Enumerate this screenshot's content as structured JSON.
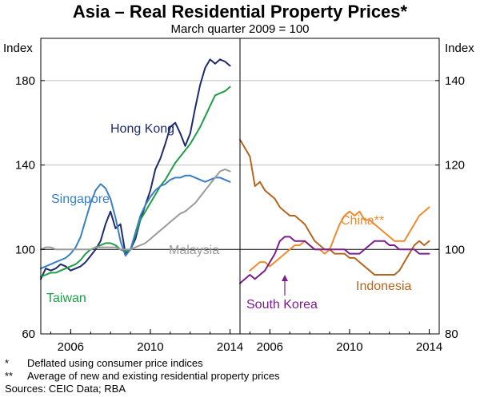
{
  "chart_data": {
    "type": "line",
    "title": "Asia – Real Residential Property Prices*",
    "subtitle": "March quarter 2009 = 100",
    "notes": [
      {
        "marker": "*",
        "text": "Deflated using consumer price indices"
      },
      {
        "marker": "**",
        "text": "Average of new and existing residential property prices"
      }
    ],
    "sources": "Sources: CEIC Data; RBA",
    "panels": [
      {
        "side": "left",
        "ylabel": "Index",
        "ylim": [
          60,
          200
        ],
        "yticks": [
          60,
          100,
          140,
          180
        ],
        "xlim": [
          2004.5,
          2014.5
        ],
        "xticks": [
          2006,
          2010,
          2014
        ],
        "reference_line": 100,
        "series": [
          {
            "name": "Hong Kong",
            "color": "#1f2a6b",
            "x": [
              2004.5,
              2004.75,
              2005,
              2005.25,
              2005.5,
              2005.75,
              2006,
              2006.25,
              2006.5,
              2006.75,
              2007,
              2007.25,
              2007.5,
              2007.75,
              2008,
              2008.25,
              2008.5,
              2008.75,
              2009,
              2009.25,
              2009.5,
              2009.75,
              2010,
              2010.25,
              2010.5,
              2010.75,
              2011,
              2011.25,
              2011.5,
              2011.75,
              2012,
              2012.25,
              2012.5,
              2012.75,
              2013,
              2013.25,
              2013.5,
              2013.75,
              2014
            ],
            "values": [
              86,
              91,
              90,
              91,
              93,
              92,
              90,
              91,
              92,
              94,
              97,
              100,
              104,
              112,
              118,
              110,
              112,
              98,
              100,
              105,
              114,
              121,
              128,
              138,
              143,
              150,
              158,
              160,
              155,
              149,
              155,
              167,
              178,
              186,
              190,
              188,
              190,
              189,
              187
            ]
          },
          {
            "name": "Taiwan",
            "color": "#1f9e47",
            "x": [
              2004.5,
              2004.75,
              2005,
              2005.25,
              2005.5,
              2005.75,
              2006,
              2006.25,
              2006.5,
              2006.75,
              2007,
              2007.25,
              2007.5,
              2007.75,
              2008,
              2008.25,
              2008.5,
              2008.75,
              2009,
              2009.25,
              2009.5,
              2009.75,
              2010,
              2010.25,
              2010.5,
              2010.75,
              2011,
              2011.25,
              2011.5,
              2011.75,
              2012,
              2012.25,
              2012.5,
              2012.75,
              2013,
              2013.25,
              2013.5,
              2013.75,
              2014
            ],
            "values": [
              87,
              88,
              89,
              89,
              90,
              91,
              92,
              93,
              95,
              98,
              100,
              101,
              102,
              103,
              103,
              102,
              100,
              99,
              100,
              107,
              114,
              118,
              122,
              126,
              130,
              133,
              137,
              141,
              144,
              147,
              150,
              154,
              158,
              163,
              168,
              173,
              174,
              175,
              177
            ]
          },
          {
            "name": "Singapore",
            "color": "#3a7fc4",
            "x": [
              2004.5,
              2004.75,
              2005,
              2005.25,
              2005.5,
              2005.75,
              2006,
              2006.25,
              2006.5,
              2006.75,
              2007,
              2007.25,
              2007.5,
              2007.75,
              2008,
              2008.25,
              2008.5,
              2008.75,
              2009,
              2009.25,
              2009.5,
              2009.75,
              2010,
              2010.25,
              2010.5,
              2010.75,
              2011,
              2011.25,
              2011.5,
              2011.75,
              2012,
              2012.25,
              2012.5,
              2012.75,
              2013,
              2013.25,
              2013.5,
              2013.75,
              2014
            ],
            "values": [
              91,
              92,
              93,
              94,
              95,
              96,
              98,
              101,
              106,
              114,
              122,
              128,
              131,
              129,
              124,
              115,
              104,
              97,
              100,
              108,
              116,
              121,
              125,
              128,
              130,
              131,
              133,
              134,
              134,
              135,
              135,
              134,
              133,
              132,
              133,
              134,
              134,
              133,
              132
            ]
          },
          {
            "name": "Malaysia",
            "color": "#9a9a9a",
            "x": [
              2004.5,
              2004.75,
              2005,
              2005.25,
              2005.5,
              2005.75,
              2006,
              2006.25,
              2006.5,
              2006.75,
              2007,
              2007.25,
              2007.5,
              2007.75,
              2008,
              2008.25,
              2008.5,
              2008.75,
              2009,
              2009.25,
              2009.5,
              2009.75,
              2010,
              2010.25,
              2010.5,
              2010.75,
              2011,
              2011.25,
              2011.5,
              2011.75,
              2012,
              2012.25,
              2012.5,
              2012.75,
              2013,
              2013.25,
              2013.5,
              2013.75,
              2014
            ],
            "values": [
              100,
              101,
              101,
              100,
              100,
              100,
              100,
              100,
              100,
              100,
              100,
              101,
              101,
              101,
              101,
              101,
              100,
              100,
              100,
              101,
              102,
              103,
              105,
              107,
              109,
              111,
              113,
              115,
              117,
              118,
              120,
              122,
              125,
              128,
              131,
              134,
              137,
              138,
              137
            ]
          }
        ]
      },
      {
        "side": "right",
        "ylabel": "Index",
        "ylim": [
          80,
          150
        ],
        "yticks": [
          80,
          100,
          120,
          140
        ],
        "xlim": [
          2004.5,
          2014.5
        ],
        "xticks": [
          2006,
          2010,
          2014
        ],
        "reference_line": 100,
        "series": [
          {
            "name": "Indonesia",
            "color": "#b5651d",
            "x": [
              2004.5,
              2004.75,
              2005,
              2005.25,
              2005.5,
              2005.75,
              2006,
              2006.25,
              2006.5,
              2006.75,
              2007,
              2007.25,
              2007.5,
              2007.75,
              2008,
              2008.25,
              2008.5,
              2008.75,
              2009,
              2009.25,
              2009.5,
              2009.75,
              2010,
              2010.25,
              2010.5,
              2010.75,
              2011,
              2011.25,
              2011.5,
              2011.75,
              2012,
              2012.25,
              2012.5,
              2012.75,
              2013,
              2013.25,
              2013.5,
              2013.75,
              2014
            ],
            "values": [
              126,
              124,
              122,
              115,
              116,
              114,
              113,
              112,
              110,
              109,
              108,
              108,
              107,
              106,
              104,
              102,
              101,
              100,
              100,
              99,
              99,
              99,
              98,
              98,
              97,
              96,
              95,
              94,
              94,
              94,
              94,
              94,
              95,
              97,
              99,
              101,
              102,
              101,
              102
            ]
          },
          {
            "name": "China**",
            "color": "#ef8a2e",
            "x": [
              2005,
              2005.25,
              2005.5,
              2005.75,
              2006,
              2006.25,
              2006.5,
              2006.75,
              2007,
              2007.25,
              2007.5,
              2007.75,
              2008,
              2008.25,
              2008.5,
              2008.75,
              2009,
              2009.25,
              2009.5,
              2009.75,
              2010,
              2010.25,
              2010.5,
              2010.75,
              2011,
              2011.25,
              2011.5,
              2011.75,
              2012,
              2012.25,
              2012.5,
              2012.75,
              2013,
              2013.25,
              2013.5,
              2013.75,
              2014
            ],
            "values": [
              95,
              96,
              97,
              97,
              96,
              97,
              98,
              99,
              100,
              101,
              101,
              102,
              101,
              100,
              100,
              99,
              100,
              103,
              106,
              108,
              109,
              108,
              109,
              107,
              107,
              106,
              105,
              104,
              103,
              102,
              102,
              102,
              104,
              106,
              108,
              109,
              110
            ]
          },
          {
            "name": "South Korea",
            "color": "#7a1e8c",
            "x": [
              2004.5,
              2004.75,
              2005,
              2005.25,
              2005.5,
              2005.75,
              2006,
              2006.25,
              2006.5,
              2006.75,
              2007,
              2007.25,
              2007.5,
              2007.75,
              2008,
              2008.25,
              2008.5,
              2008.75,
              2009,
              2009.25,
              2009.5,
              2009.75,
              2010,
              2010.25,
              2010.5,
              2010.75,
              2011,
              2011.25,
              2011.5,
              2011.75,
              2012,
              2012.25,
              2012.5,
              2012.75,
              2013,
              2013.25,
              2013.5,
              2013.75,
              2014
            ],
            "values": [
              92,
              93,
              94,
              93,
              94,
              95,
              97,
              99,
              102,
              103,
              103,
              102,
              102,
              102,
              101,
              100,
              100,
              100,
              100,
              100,
              100,
              100,
              99,
              99,
              99,
              100,
              101,
              102,
              102,
              102,
              101,
              101,
              100,
              100,
              100,
              100,
              99,
              99,
              99
            ]
          }
        ]
      }
    ],
    "labels": {
      "hong_kong": "Hong Kong",
      "singapore": "Singapore",
      "malaysia": "Malaysia",
      "taiwan": "Taiwan",
      "china": "China**",
      "indonesia": "Indonesia",
      "south_korea": "South Korea"
    }
  }
}
